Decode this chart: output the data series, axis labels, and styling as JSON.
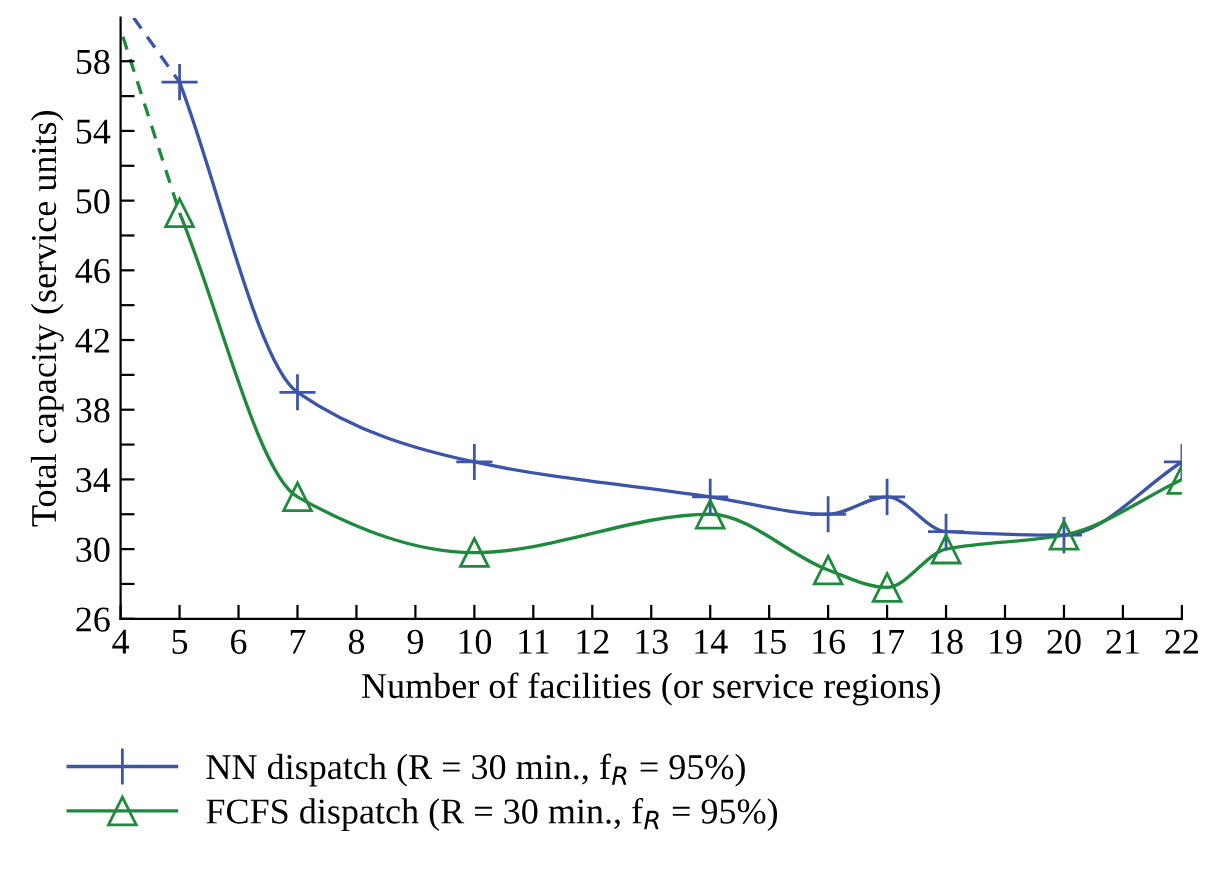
{
  "chart_data": {
    "type": "line",
    "xlabel": "Number of facilities (or service regions)",
    "ylabel": "Total capacity (service units)",
    "xlim": [
      4,
      22
    ],
    "xticks": [
      4,
      5,
      6,
      7,
      8,
      9,
      10,
      11,
      12,
      13,
      14,
      15,
      16,
      17,
      18,
      19,
      20,
      21,
      22
    ],
    "ylim": [
      26,
      60.5
    ],
    "yticks": [
      26,
      {
        "value": 28,
        "label": null
      },
      30,
      {
        "value": 32,
        "label": null
      },
      34,
      {
        "value": 36,
        "label": null
      },
      38,
      {
        "value": 40,
        "label": null
      },
      42,
      {
        "value": 44,
        "label": null
      },
      46,
      {
        "value": 48,
        "label": null
      },
      50,
      {
        "value": 52,
        "label": null
      },
      54,
      {
        "value": 56,
        "label": null
      },
      58
    ],
    "grid": false,
    "legend": "bottom left",
    "series": [
      {
        "name": "NN dispatch (R = 30 min., f$_{R}$ = 95%)",
        "color": "#3b55a8",
        "marker": "cross",
        "line_style": "solid",
        "x": [
          5,
          7,
          10,
          14,
          16,
          17,
          18,
          20,
          22
        ],
        "values": [
          56.8,
          39,
          35,
          33,
          32,
          33,
          31,
          30.8,
          35
        ]
      },
      {
        "name": "FCFS dispatch (R = 30 min., f$_{R}$ = 95%)",
        "color": "#1e8a3c",
        "marker": "triangle",
        "line_style": "solid",
        "x": [
          5,
          7,
          10,
          14,
          16,
          17,
          18,
          20,
          22
        ],
        "values": [
          49.3,
          33,
          29.8,
          32,
          28.8,
          27.8,
          30,
          30.8,
          34
        ]
      },
      {
        "color": "#3b55a8",
        "marker": "none",
        "line_style": "dashed",
        "x": [
          4.22,
          5
        ],
        "values": [
          60.5,
          56.8
        ]
      },
      {
        "color": "#1e8a3c",
        "marker": "none",
        "line_style": "dashed",
        "x": [
          4.04,
          5
        ],
        "values": [
          59.4,
          49.3
        ]
      }
    ]
  }
}
